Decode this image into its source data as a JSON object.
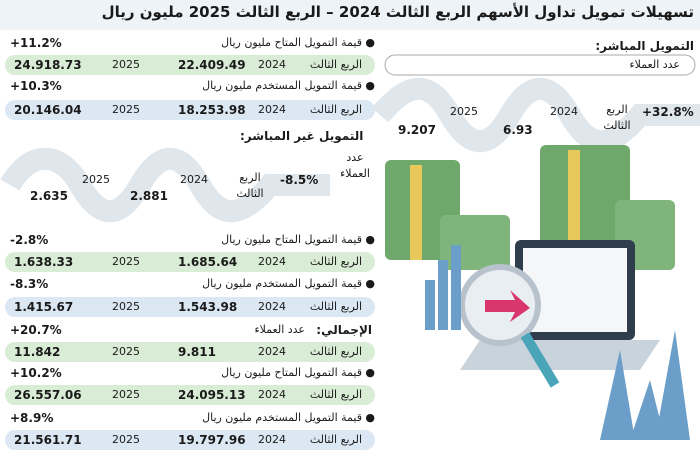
{
  "title": "تسهيلات تمويل تداول الأسهم الربع الثالث 2024 – الربع الثالث 2025 مليون ريال",
  "direct": {
    "heading": "التمويل المباشر:",
    "customers_label": "عدد العملاء",
    "change": "+32.8%",
    "quarter": "الربع الثالث",
    "year_a": "2024",
    "value_a": "6.93",
    "year_b": "2025",
    "value_b": "9.207"
  },
  "indirect": {
    "heading": "التمويل غير المباشر:",
    "customers_label": "عدد العملاء",
    "change": "-8.5%",
    "quarter": "الربع الثالث",
    "year_a": "2024",
    "value_a": "2.881",
    "year_b": "2025",
    "value_b": "2.635"
  },
  "total": {
    "heading": "الإجمالي:",
    "label": "عدد العملاء",
    "change": "+20.7%",
    "quarter": "الربع الثالث",
    "year_a": "2024",
    "value_a": "9.811",
    "year_b": "2025",
    "value_b": "11.842"
  },
  "rows": [
    {
      "label": "قيمة التمويل المتاح مليون ريال",
      "change": "+11.2%",
      "quarter": "الربع الثالث",
      "year_a": "2024",
      "value_a": "22.409.49",
      "year_b": "2025",
      "value_b": "24.918.73"
    },
    {
      "label": "قيمة التمويل المستخدم مليون ريال",
      "change": "+10.3%",
      "quarter": "الربع الثالث",
      "year_a": "2024",
      "value_a": "18.253.98",
      "year_b": "2025",
      "value_b": "20.146.04"
    },
    {
      "label": "قيمة التمويل المتاح مليون ريال",
      "change": "-2.8%",
      "quarter": "الربع الثالث",
      "year_a": "2024",
      "value_a": "1.685.64",
      "year_b": "2025",
      "value_b": "1.638.33"
    },
    {
      "label": "قيمة التمويل المستخدم مليون ريال",
      "change": "-8.3%",
      "quarter": "الربع الثالث",
      "year_a": "2024",
      "value_a": "1.543.98",
      "year_b": "2025",
      "value_b": "1.415.67"
    },
    {
      "label": "قيمة التمويل المتاح مليون ريال",
      "change": "+10.2%",
      "quarter": "الربع الثالث",
      "year_a": "2024",
      "value_a": "24.095.13",
      "year_b": "2025",
      "value_b": "26.557.06"
    },
    {
      "label": "قيمة التمويل المستخدم مليون ريال",
      "change": "+8.9%",
      "quarter": "الربع الثالث",
      "year_a": "2024",
      "value_a": "19.797.96",
      "year_b": "2025",
      "value_b": "21.561.71"
    }
  ]
}
